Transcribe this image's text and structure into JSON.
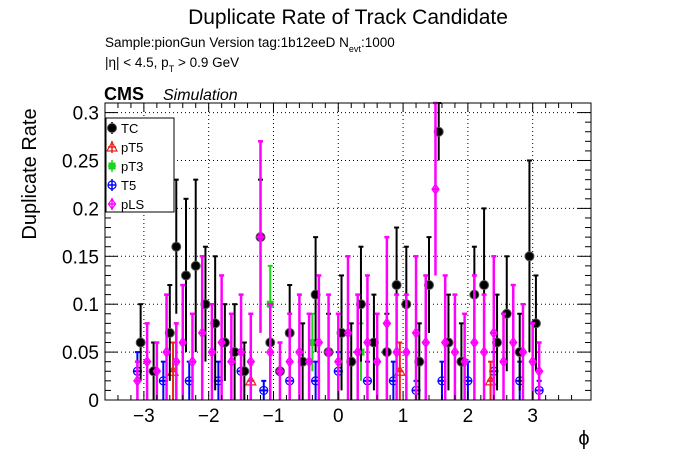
{
  "chart_data": {
    "type": "scatter",
    "title": "Duplicate Rate of Track Candidate",
    "subtitle_sample": "Sample:pionGun   Version tag:1b12eeD  N",
    "subtitle_nevt_sub": "evt",
    "subtitle_nevt_val": ":1000",
    "cuts_prefix": "|η| < 4.5, p",
    "cuts_sub": "T",
    "cuts_suffix": " > 0.9 GeV",
    "cms_label": "CMS",
    "simulation_label": "Simulation",
    "xlabel": "ϕ",
    "ylabel": "Duplicate Rate",
    "xlim": [
      -3.6,
      3.9
    ],
    "ylim": [
      0,
      0.31
    ],
    "xticks": [
      -3,
      -2,
      -1,
      0,
      1,
      2,
      3
    ],
    "xtick_labels": [
      "−3",
      "−2",
      "−1",
      "0",
      "1",
      "2",
      "3"
    ],
    "yticks": [
      0,
      0.05,
      0.1,
      0.15,
      0.2,
      0.25,
      0.3
    ],
    "ytick_labels": [
      "0",
      "0.05",
      "0.1",
      "0.15",
      "0.2",
      "0.25",
      "0.3"
    ],
    "grid": true,
    "legend_position": "top-left",
    "series": [
      {
        "name": "TC",
        "color": "#000000",
        "marker": "filled-circle",
        "x": [
          -3.05,
          -2.85,
          -2.6,
          -2.5,
          -2.35,
          -2.2,
          -2.05,
          -1.9,
          -1.75,
          -1.6,
          -1.45,
          -1.2,
          -1.05,
          -0.9,
          -0.75,
          -0.55,
          -0.35,
          -0.15,
          0.05,
          0.2,
          0.35,
          0.55,
          0.75,
          0.9,
          1.05,
          1.25,
          1.4,
          1.55,
          1.7,
          1.9,
          2.1,
          2.25,
          2.45,
          2.6,
          2.8,
          2.95,
          3.05
        ],
        "y": [
          0.06,
          0.03,
          0.07,
          0.16,
          0.13,
          0.14,
          0.1,
          0.08,
          0.06,
          0.05,
          0.03,
          0.17,
          0.06,
          0.03,
          0.07,
          0.04,
          0.11,
          0.05,
          0.07,
          0.04,
          0.1,
          0.06,
          0.05,
          0.12,
          0.1,
          0.04,
          0.12,
          0.28,
          0.06,
          0.04,
          0.11,
          0.12,
          0.06,
          0.09,
          0.05,
          0.15,
          0.08
        ],
        "err": [
          0.04,
          0.03,
          0.05,
          0.07,
          0.08,
          0.09,
          0.06,
          0.07,
          0.04,
          0.05,
          0.03,
          0.06,
          0.04,
          0.03,
          0.05,
          0.04,
          0.06,
          0.04,
          0.06,
          0.04,
          0.06,
          0.05,
          0.04,
          0.06,
          0.06,
          0.04,
          0.05,
          0.03,
          0.05,
          0.04,
          0.05,
          0.08,
          0.05,
          0.06,
          0.04,
          0.1,
          0.05
        ]
      },
      {
        "name": "pT5",
        "color": "#e8241c",
        "marker": "open-triangle",
        "x": [
          -2.55,
          -1.35,
          0.95,
          2.35
        ],
        "y": [
          0.03,
          0.02,
          0.03,
          0.02
        ],
        "err": [
          0.03,
          0.02,
          0.03,
          0.02
        ]
      },
      {
        "name": "pT3",
        "color": "#1ad61a",
        "marker": "filled-square",
        "x": [
          -1.05,
          -0.4,
          0.35
        ],
        "y": [
          0.1,
          0.06,
          0.05
        ],
        "err": [
          0.04,
          0.03,
          0.03
        ]
      },
      {
        "name": "T5",
        "color": "#0000ff",
        "marker": "open-circle",
        "x": [
          -3.1,
          -2.7,
          -2.3,
          -1.85,
          -1.5,
          -1.15,
          -0.75,
          -0.35,
          0.0,
          0.45,
          0.85,
          1.2,
          1.6,
          2.0,
          2.4,
          2.8,
          3.1
        ],
        "y": [
          0.03,
          0.02,
          0.02,
          0.02,
          0.03,
          0.01,
          0.02,
          0.02,
          0.03,
          0.02,
          0.02,
          0.01,
          0.02,
          0.02,
          0.03,
          0.02,
          0.01
        ],
        "err": [
          0.02,
          0.02,
          0.02,
          0.02,
          0.02,
          0.01,
          0.02,
          0.02,
          0.02,
          0.02,
          0.02,
          0.01,
          0.02,
          0.02,
          0.02,
          0.02,
          0.01
        ]
      },
      {
        "name": "pLS",
        "color": "#ff00ff",
        "marker": "open-diamond",
        "x": [
          -3.1,
          -2.95,
          -2.8,
          -2.65,
          -2.5,
          -2.4,
          -2.25,
          -2.1,
          -1.95,
          -1.8,
          -1.65,
          -1.5,
          -1.35,
          -1.2,
          -1.05,
          -0.9,
          -0.75,
          -0.6,
          -0.45,
          -0.3,
          -0.15,
          0.0,
          0.15,
          0.3,
          0.45,
          0.6,
          0.75,
          0.9,
          1.05,
          1.2,
          1.35,
          1.5,
          1.65,
          1.8,
          1.95,
          2.1,
          2.25,
          2.4,
          2.55,
          2.7,
          2.85,
          3.0,
          3.1
        ],
        "y": [
          0.02,
          0.04,
          0.03,
          0.05,
          0.04,
          0.06,
          0.04,
          0.07,
          0.05,
          0.06,
          0.04,
          0.05,
          0.04,
          0.17,
          0.05,
          0.03,
          0.04,
          0.05,
          0.04,
          0.06,
          0.05,
          0.04,
          0.07,
          0.05,
          0.06,
          0.04,
          0.08,
          0.05,
          0.05,
          0.07,
          0.06,
          0.22,
          0.06,
          0.05,
          0.04,
          0.06,
          0.05,
          0.07,
          0.04,
          0.06,
          0.05,
          0.04,
          0.03
        ],
        "err": [
          0.02,
          0.04,
          0.03,
          0.06,
          0.04,
          0.06,
          0.05,
          0.08,
          0.05,
          0.07,
          0.05,
          0.06,
          0.05,
          0.1,
          0.05,
          0.03,
          0.05,
          0.06,
          0.05,
          0.07,
          0.06,
          0.05,
          0.08,
          0.06,
          0.07,
          0.05,
          0.09,
          0.06,
          0.06,
          0.08,
          0.07,
          0.09,
          0.07,
          0.06,
          0.05,
          0.07,
          0.06,
          0.08,
          0.05,
          0.06,
          0.05,
          0.04,
          0.03
        ]
      }
    ]
  }
}
